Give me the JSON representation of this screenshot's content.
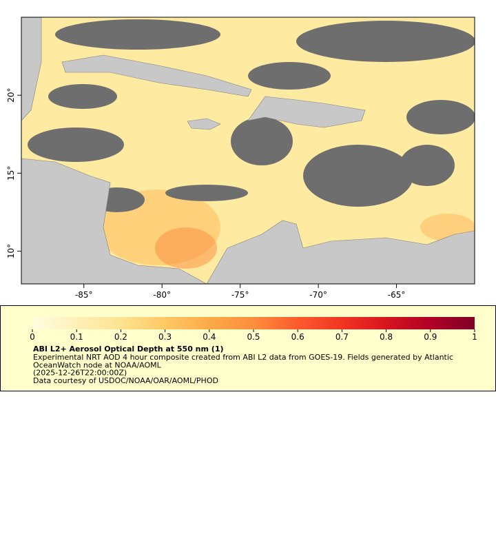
{
  "map": {
    "xlim": [
      -89,
      -60
    ],
    "ylim": [
      7.9,
      25
    ],
    "xticks": [
      {
        "value": -85,
        "label": "-85°"
      },
      {
        "value": -80,
        "label": "-80°"
      },
      {
        "value": -75,
        "label": "-75°"
      },
      {
        "value": -70,
        "label": "-70°"
      },
      {
        "value": -65,
        "label": "-65°"
      }
    ],
    "yticks": [
      {
        "value": 10,
        "label": "10°"
      },
      {
        "value": 15,
        "label": "15°"
      },
      {
        "value": 20,
        "label": "20°"
      }
    ]
  },
  "legend": {
    "lim": [
      0,
      1
    ],
    "ticks": [
      0,
      0.1,
      0.2,
      0.3,
      0.4,
      0.5,
      0.6,
      0.7,
      0.8,
      0.9,
      1
    ],
    "colors": [
      "#fffde0",
      "#fff0b8",
      "#fee391",
      "#fec864",
      "#fdaa48",
      "#fd8d3c",
      "#fc5b2e",
      "#f03523",
      "#d7141f",
      "#b10026",
      "#800026"
    ],
    "title": "ABI L2+ Aerosol Optical Depth at 550 nm (1)",
    "lines": [
      "Experimental NRT AOD 4 hour composite created from ABI L2 data from GOES-19. Fields generated by Atlantic",
      "OceanWatch node at NOAA/AOML",
      "(2025-12-26T22:00:00Z)",
      "Data courtesy of USDOC/NOAA/OAR/AOML/PHOD"
    ]
  }
}
